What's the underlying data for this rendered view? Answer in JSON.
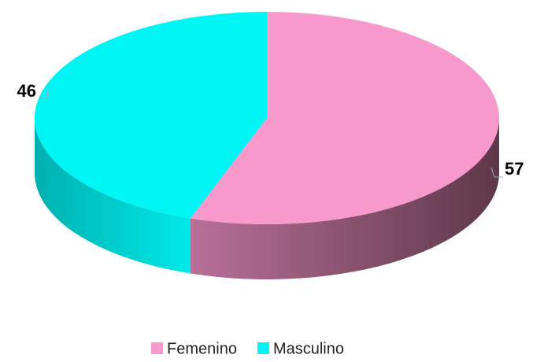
{
  "chart_data": {
    "type": "pie",
    "categories": [
      "Femenino",
      "Masculino"
    ],
    "values": [
      57,
      46
    ],
    "colors": [
      "#f799cc",
      "#00f5f5"
    ],
    "side_colors": [
      [
        "#b87099",
        "#5e3848"
      ],
      [
        "#00e8e8",
        "#00b0b0"
      ]
    ]
  }
}
